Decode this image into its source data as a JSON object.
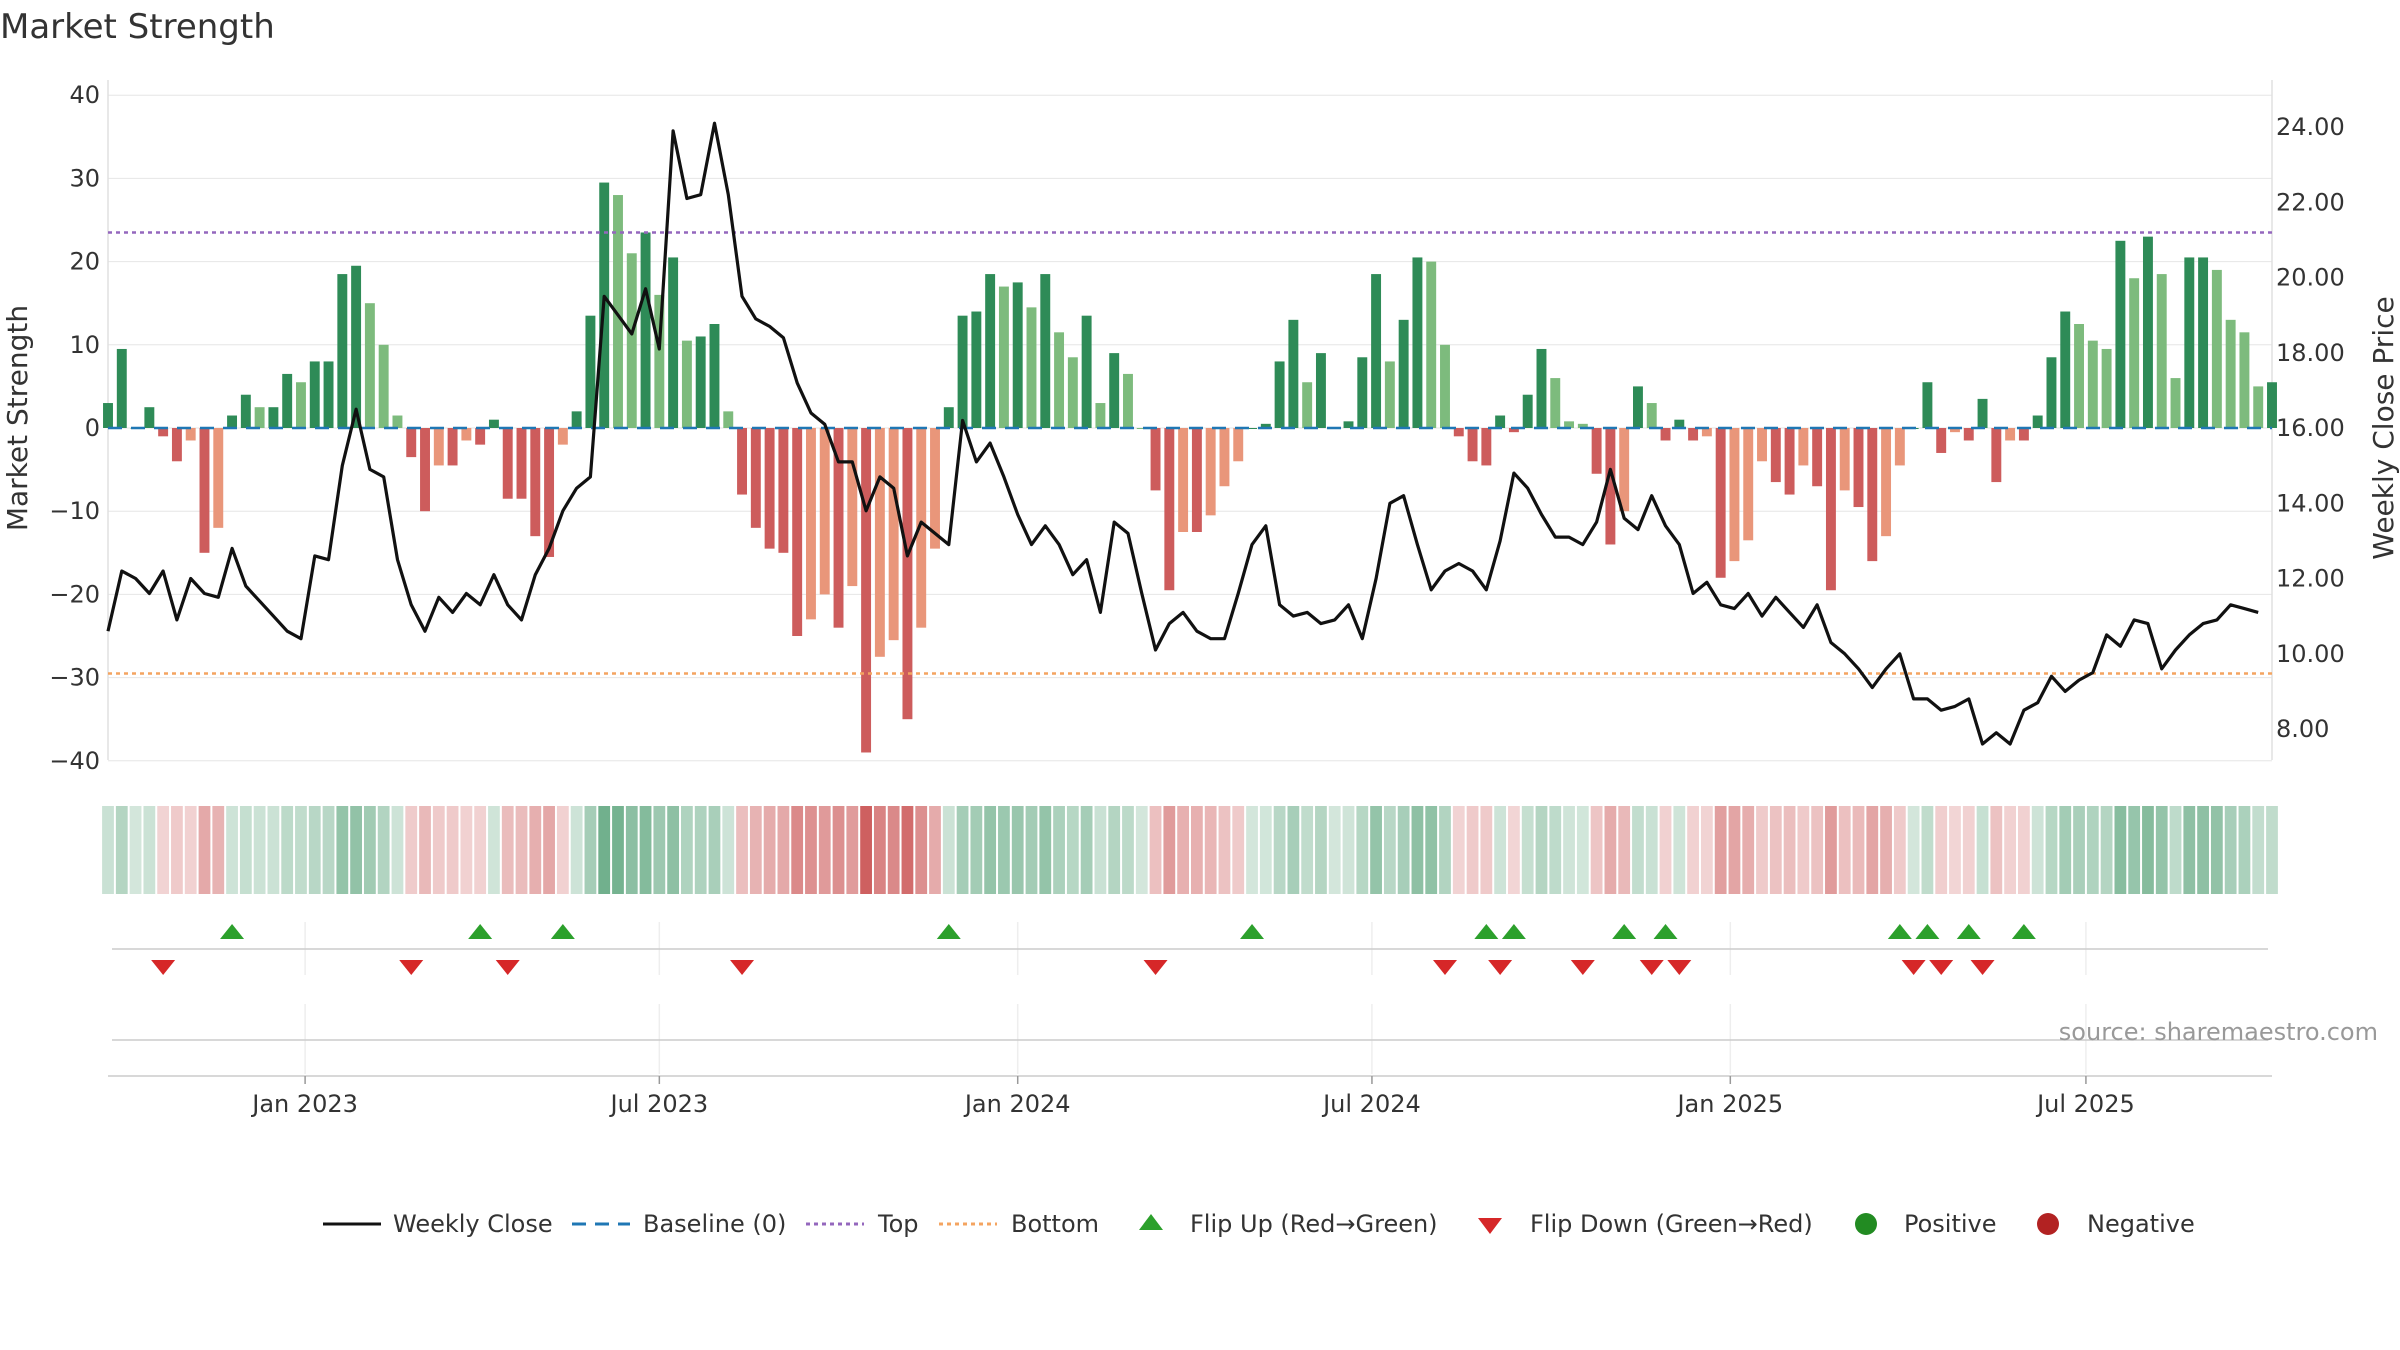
{
  "chart_data": {
    "type": "bar",
    "title": "Market Strength",
    "ylabel_left": "Market Strength",
    "ylabel_right": "Weekly Close Price",
    "ylim_left": [
      -42,
      42
    ],
    "ylim_right": [
      6.5,
      25.2
    ],
    "yticks_left": [
      "40",
      "30",
      "20",
      "10",
      "0",
      "−10",
      "−20",
      "−30",
      "−40"
    ],
    "ytick_values_left": [
      40,
      30,
      20,
      10,
      0,
      -10,
      -20,
      -30,
      -40
    ],
    "yticks_right": [
      "24.00",
      "22.00",
      "20.00",
      "18.00",
      "16.00",
      "14.00",
      "12.00",
      "10.00",
      "8.00"
    ],
    "ytick_values_right": [
      24,
      22,
      20,
      18,
      16,
      14,
      12,
      10,
      8
    ],
    "xticks": [
      "Jan 2023",
      "Jul 2023",
      "Jan 2024",
      "Jul 2024",
      "Jan 2025",
      "Jul 2025"
    ],
    "xtick_weeks": [
      14.3,
      40,
      66,
      91.7,
      117.7,
      143.5
    ],
    "top_threshold": 23.5,
    "bottom_threshold": -29.5,
    "strength": [
      3,
      9.5,
      0,
      2.5,
      -1,
      -4,
      -1.5,
      -15,
      -12,
      1.5,
      4,
      2.5,
      2.5,
      6.5,
      5.5,
      8,
      8,
      18.5,
      19.5,
      15,
      10,
      1.5,
      -3.5,
      -10,
      -4.5,
      -4.5,
      -1.5,
      -2,
      1,
      -8.5,
      -8.5,
      -13,
      -15.5,
      -2,
      2,
      13.5,
      29.5,
      28,
      21,
      23.5,
      16,
      20.5,
      10.5,
      11,
      12.5,
      2,
      -8,
      -12,
      -14.5,
      -15,
      -25,
      -23,
      -20,
      -24,
      -19,
      -39,
      -27.5,
      -25.5,
      -35,
      -24,
      -14.5,
      2.5,
      13.5,
      14,
      18.5,
      17,
      17.5,
      14.5,
      18.5,
      11.5,
      8.5,
      13.5,
      3,
      9,
      6.5,
      0,
      -7.5,
      -19.5,
      -12.5,
      -12.5,
      -10.5,
      -7,
      -4,
      0,
      0.5,
      8,
      13,
      5.5,
      9,
      0,
      0.8,
      8.5,
      18.5,
      8,
      13,
      20.5,
      20,
      10,
      -1,
      -4,
      -4.5,
      1.5,
      -0.5,
      4,
      9.5,
      6,
      0.8,
      0.5,
      -5.5,
      -14,
      -10,
      5,
      3,
      -1.5,
      1,
      -1.5,
      -1,
      -18,
      -16,
      -13.5,
      -4,
      -6.5,
      -8,
      -4.5,
      -7,
      -19.5,
      -7.5,
      -9.5,
      -16,
      -13,
      -4.5,
      0,
      5.5,
      -3,
      -0.5,
      -1.5,
      3.5,
      -6.5,
      -1.5,
      -1.5,
      1.5,
      8.5,
      14,
      12.5,
      10.5,
      9.5,
      22.5,
      18,
      23,
      18.5,
      6,
      20.5,
      20.5,
      19,
      13,
      11.5,
      5,
      5.5
    ],
    "close": [
      10.6,
      12.2,
      12,
      11.6,
      12.2,
      10.9,
      12,
      11.6,
      11.5,
      12.8,
      11.8,
      11.4,
      11,
      10.6,
      10.4,
      12.6,
      12.5,
      15,
      16.5,
      14.9,
      14.7,
      12.5,
      11.3,
      10.6,
      11.5,
      11.1,
      11.6,
      11.3,
      12.1,
      11.3,
      10.9,
      12.1,
      12.8,
      13.8,
      14.4,
      14.7,
      19.5,
      19,
      18.5,
      19.7,
      18.1,
      23.9,
      22.1,
      22.2,
      24.1,
      22.2,
      19.5,
      18.9,
      18.7,
      18.4,
      17.2,
      16.4,
      16.1,
      15.1,
      15.1,
      13.8,
      14.7,
      14.4,
      12.6,
      13.5,
      13.2,
      12.9,
      16.2,
      15.1,
      15.6,
      14.7,
      13.7,
      12.9,
      13.4,
      12.9,
      12.1,
      12.5,
      11.1,
      13.5,
      13.2,
      11.6,
      10.1,
      10.8,
      11.1,
      10.6,
      10.4,
      10.4,
      11.6,
      12.9,
      13.4,
      11.3,
      11,
      11.1,
      10.8,
      10.9,
      11.3,
      10.4,
      12,
      14,
      14.2,
      12.9,
      11.7,
      12.2,
      12.4,
      12.2,
      11.7,
      13,
      14.8,
      14.4,
      13.7,
      13.1,
      13.1,
      12.9,
      13.5,
      14.9,
      13.6,
      13.3,
      14.2,
      13.4,
      12.9,
      11.6,
      11.9,
      11.3,
      11.2,
      11.6,
      11,
      11.5,
      11.1,
      10.7,
      11.3,
      10.3,
      10,
      9.6,
      9.1,
      9.6,
      10,
      8.8,
      8.8,
      8.5,
      8.6,
      8.8,
      7.6,
      7.9,
      7.6,
      8.5,
      8.7,
      9.4,
      9,
      9.3,
      9.5,
      10.5,
      10.2,
      10.9,
      10.8,
      9.6,
      10.1,
      10.5,
      10.8,
      10.9,
      11.3,
      11.2,
      11.1
    ],
    "flip_up_weeks": [
      9,
      27,
      33,
      61,
      83,
      100,
      102,
      110,
      113,
      130,
      132,
      135,
      139
    ],
    "flip_down_weeks": [
      4,
      22,
      29,
      46,
      76,
      97,
      101,
      107,
      112,
      114,
      131,
      133,
      136
    ],
    "series": [
      {
        "name": "Weekly Close",
        "color": "#111111"
      },
      {
        "name": "Baseline (0)",
        "color": "#1f77b4"
      },
      {
        "name": "Top",
        "color": "#9467bd"
      },
      {
        "name": "Bottom",
        "color": "#f4a460"
      },
      {
        "name": "Flip Up (Red→Green)",
        "color": "#2ca02c"
      },
      {
        "name": "Flip Down (Green→Red)",
        "color": "#d62728"
      },
      {
        "name": "Positive",
        "color": "#228b22"
      },
      {
        "name": "Negative",
        "color": "#b22222"
      }
    ],
    "source": "source: sharemaestro.com"
  }
}
